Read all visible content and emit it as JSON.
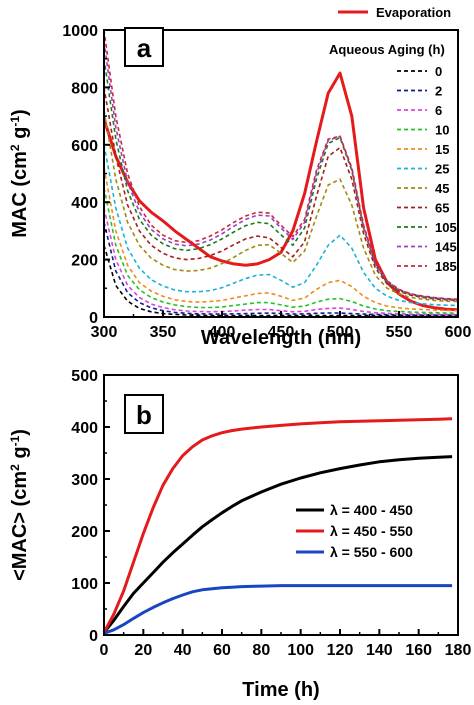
{
  "chart_data": [
    {
      "type": "line",
      "panel_label": "a",
      "xlabel": "Wavelength (nm)",
      "ylabel": [
        "MAC (cm",
        "2",
        " g",
        "-1",
        ")"
      ],
      "xlim": [
        300,
        600
      ],
      "ylim": [
        0,
        1000
      ],
      "xticks": [
        "300",
        "350",
        "400",
        "450",
        "500",
        "550",
        "600"
      ],
      "yticks": [
        "0",
        "200",
        "400",
        "600",
        "800",
        "1000"
      ],
      "grid": false,
      "legend_placement": "top-right",
      "legend_title": "Aqueous Aging (h)",
      "x": [
        300,
        310,
        320,
        330,
        340,
        350,
        360,
        370,
        380,
        390,
        400,
        410,
        420,
        430,
        440,
        450,
        460,
        470,
        480,
        490,
        500,
        510,
        520,
        530,
        540,
        550,
        560,
        570,
        580,
        590,
        600
      ],
      "series": [
        {
          "name": "Evaporation",
          "color": "#e41a1c",
          "style": "solid",
          "values": [
            690,
            560,
            470,
            405,
            365,
            335,
            300,
            270,
            240,
            210,
            195,
            185,
            180,
            185,
            200,
            225,
            300,
            430,
            610,
            780,
            850,
            700,
            380,
            200,
            120,
            80,
            55,
            40,
            32,
            27,
            25
          ]
        },
        {
          "name": "0",
          "color": "#000000",
          "style": "dashed",
          "values": [
            250,
            110,
            55,
            30,
            18,
            12,
            9,
            7,
            6,
            5,
            5,
            5,
            5,
            5,
            5,
            5,
            5,
            5,
            5,
            5,
            5,
            5,
            5,
            5,
            5,
            5,
            5,
            5,
            5,
            5,
            5
          ]
        },
        {
          "name": "2",
          "color": "#0a1f8f",
          "style": "dashed",
          "values": [
            330,
            160,
            85,
            50,
            32,
            22,
            16,
            13,
            11,
            10,
            10,
            11,
            12,
            13,
            14,
            12,
            10,
            11,
            13,
            14,
            14,
            12,
            10,
            9,
            8,
            8,
            7,
            7,
            7,
            7,
            7
          ]
        },
        {
          "name": "6",
          "color": "#e040e0",
          "style": "dashed",
          "values": [
            380,
            200,
            110,
            68,
            45,
            33,
            25,
            21,
            19,
            18,
            19,
            21,
            24,
            26,
            26,
            22,
            18,
            20,
            26,
            30,
            31,
            26,
            19,
            15,
            13,
            11,
            10,
            10,
            9,
            9,
            9
          ]
        },
        {
          "name": "10",
          "color": "#22c422",
          "style": "dashed",
          "values": [
            450,
            250,
            145,
            95,
            68,
            52,
            42,
            36,
            33,
            33,
            35,
            40,
            45,
            50,
            50,
            42,
            34,
            38,
            52,
            62,
            64,
            54,
            38,
            28,
            22,
            19,
            17,
            16,
            15,
            14,
            14
          ]
        },
        {
          "name": "15",
          "color": "#f08a1a",
          "style": "dashed",
          "values": [
            520,
            300,
            180,
            120,
            90,
            72,
            60,
            54,
            52,
            54,
            58,
            66,
            74,
            82,
            84,
            72,
            58,
            66,
            96,
            120,
            128,
            106,
            72,
            50,
            38,
            32,
            28,
            26,
            24,
            23,
            22
          ]
        },
        {
          "name": "25",
          "color": "#19b4d4",
          "style": "dashed",
          "values": [
            600,
            380,
            240,
            170,
            130,
            108,
            94,
            88,
            88,
            92,
            102,
            118,
            134,
            146,
            148,
            128,
            104,
            120,
            180,
            250,
            285,
            240,
            155,
            100,
            72,
            58,
            50,
            46,
            43,
            41,
            40
          ]
        },
        {
          "name": "45",
          "color": "#a08a10",
          "style": "dashed",
          "values": [
            720,
            480,
            330,
            250,
            205,
            180,
            165,
            160,
            162,
            170,
            186,
            208,
            232,
            250,
            252,
            222,
            190,
            230,
            350,
            460,
            480,
            390,
            240,
            145,
            100,
            80,
            68,
            62,
            58,
            55,
            54
          ]
        },
        {
          "name": "65",
          "color": "#a81c1c",
          "style": "dashed",
          "values": [
            800,
            560,
            390,
            300,
            250,
            222,
            206,
            200,
            204,
            214,
            230,
            252,
            272,
            282,
            276,
            242,
            210,
            262,
            420,
            560,
            590,
            480,
            290,
            170,
            115,
            90,
            76,
            68,
            63,
            60,
            58
          ]
        },
        {
          "name": "105",
          "color": "#1d7a1d",
          "style": "dashed",
          "values": [
            900,
            620,
            440,
            340,
            285,
            255,
            238,
            232,
            238,
            252,
            272,
            296,
            318,
            330,
            325,
            286,
            250,
            310,
            480,
            605,
            625,
            510,
            310,
            180,
            120,
            92,
            78,
            70,
            65,
            62,
            60
          ]
        },
        {
          "name": "145",
          "color": "#9a40c8",
          "style": "dashed",
          "values": [
            960,
            660,
            470,
            365,
            305,
            272,
            254,
            248,
            254,
            268,
            290,
            316,
            340,
            355,
            352,
            310,
            270,
            330,
            500,
            615,
            630,
            515,
            315,
            185,
            124,
            95,
            80,
            72,
            67,
            63,
            61
          ]
        },
        {
          "name": "185",
          "color": "#c8283c",
          "style": "dashed",
          "values": [
            1000,
            700,
            500,
            385,
            320,
            285,
            266,
            260,
            266,
            282,
            304,
            330,
            352,
            365,
            362,
            320,
            280,
            340,
            510,
            620,
            630,
            520,
            320,
            188,
            126,
            96,
            81,
            73,
            68,
            64,
            62
          ]
        }
      ]
    },
    {
      "type": "line",
      "panel_label": "b",
      "xlabel": "Time (h)",
      "ylabel": [
        "<MAC> (cm",
        "2",
        " g",
        "-1",
        ")"
      ],
      "xlim": [
        0,
        180
      ],
      "ylim": [
        0,
        500
      ],
      "xticks": [
        "0",
        "20",
        "40",
        "60",
        "80",
        "100",
        "120",
        "140",
        "160",
        "180"
      ],
      "yticks": [
        "0",
        "100",
        "200",
        "300",
        "400",
        "500"
      ],
      "grid": false,
      "legend_placement": "center-right",
      "x": [
        0,
        5,
        10,
        15,
        20,
        25,
        30,
        35,
        40,
        45,
        50,
        55,
        60,
        65,
        70,
        80,
        90,
        100,
        110,
        120,
        130,
        140,
        150,
        160,
        170,
        177
      ],
      "series": [
        {
          "name": "λ = 400 - 450",
          "color": "#000000",
          "style": "solid",
          "values": [
            5,
            28,
            55,
            80,
            100,
            120,
            140,
            158,
            175,
            192,
            208,
            222,
            235,
            247,
            258,
            275,
            290,
            302,
            312,
            320,
            327,
            333,
            337,
            340,
            342,
            343
          ]
        },
        {
          "name": "λ = 450 - 550",
          "color": "#e41a1c",
          "style": "solid",
          "values": [
            5,
            40,
            85,
            140,
            195,
            245,
            288,
            320,
            345,
            362,
            375,
            383,
            389,
            393,
            396,
            400,
            403,
            406,
            408,
            410,
            411,
            412,
            413,
            414,
            415,
            416
          ]
        },
        {
          "name": "λ = 550 - 600",
          "color": "#1846c2",
          "style": "solid",
          "values": [
            3,
            10,
            20,
            32,
            43,
            53,
            62,
            70,
            77,
            83,
            87,
            89,
            91,
            92,
            93,
            94,
            95,
            95,
            95,
            95,
            95,
            95,
            95,
            95,
            95,
            95
          ]
        }
      ]
    }
  ]
}
